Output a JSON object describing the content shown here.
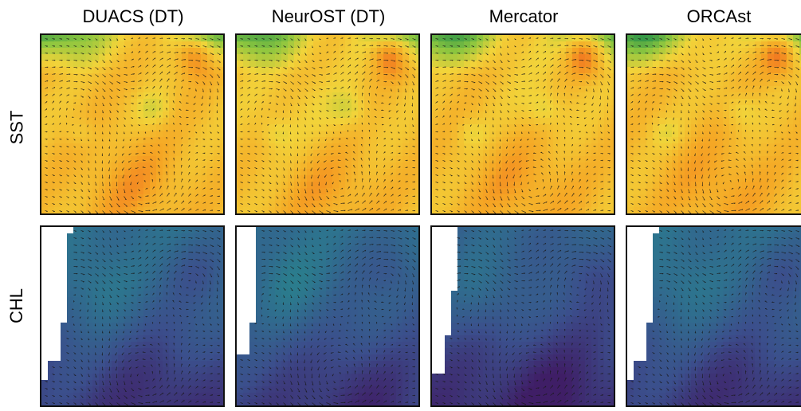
{
  "columns": [
    {
      "title": "DUACS (DT)"
    },
    {
      "title": "NeurOST (DT)"
    },
    {
      "title": "Mercator"
    },
    {
      "title": "ORCAst"
    }
  ],
  "rows": [
    {
      "label": "SST",
      "field": "sst",
      "colors": [
        "#1a8a4a",
        "#8cc63f",
        "#f2d43a",
        "#f5a524",
        "#ee4b1e"
      ]
    },
    {
      "label": "CHL",
      "field": "chl",
      "colors": [
        "#3f1e66",
        "#3b4f8c",
        "#2f6e8e",
        "#25908c",
        "#3fae7a"
      ]
    }
  ],
  "arrow_color": "#1a1a1a"
}
